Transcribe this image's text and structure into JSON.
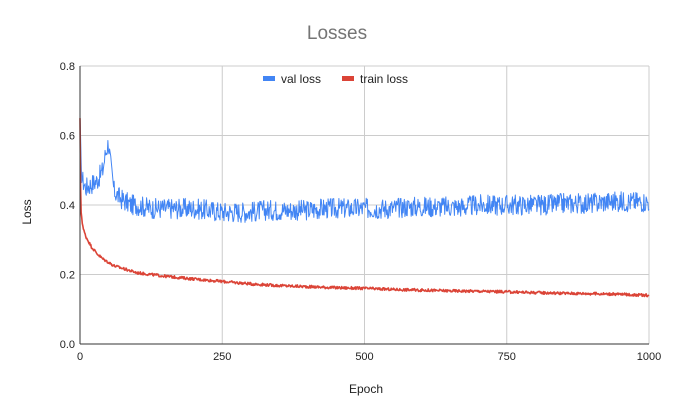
{
  "chart_data": {
    "type": "line",
    "title": "Losses",
    "xlabel": "Epoch",
    "ylabel": "Loss",
    "xlim": [
      0,
      1000
    ],
    "ylim": [
      0,
      0.8
    ],
    "xticks": [
      0,
      250,
      500,
      750,
      1000
    ],
    "yticks": [
      0.0,
      0.2,
      0.4,
      0.6,
      0.8
    ],
    "xtick_labels": [
      "0",
      "250",
      "500",
      "750",
      "1000"
    ],
    "ytick_labels": [
      "0.0",
      "0.2",
      "0.4",
      "0.6",
      "0.8"
    ],
    "grid": true,
    "legend_position": "top-center",
    "series": [
      {
        "name": "val loss",
        "color": "#4285F4",
        "x": [
          0,
          2,
          5,
          10,
          20,
          30,
          40,
          45,
          50,
          55,
          60,
          70,
          80,
          90,
          100,
          125,
          150,
          175,
          200,
          225,
          250,
          275,
          300,
          325,
          350,
          375,
          400,
          425,
          450,
          475,
          500,
          525,
          550,
          575,
          600,
          625,
          650,
          675,
          700,
          725,
          750,
          775,
          800,
          825,
          850,
          875,
          900,
          925,
          950,
          975,
          1000
        ],
        "y": [
          0.65,
          0.5,
          0.47,
          0.45,
          0.46,
          0.47,
          0.5,
          0.55,
          0.58,
          0.5,
          0.44,
          0.42,
          0.41,
          0.4,
          0.4,
          0.39,
          0.39,
          0.39,
          0.39,
          0.385,
          0.38,
          0.38,
          0.38,
          0.385,
          0.385,
          0.385,
          0.385,
          0.39,
          0.39,
          0.39,
          0.39,
          0.39,
          0.39,
          0.395,
          0.395,
          0.395,
          0.395,
          0.395,
          0.4,
          0.4,
          0.4,
          0.4,
          0.4,
          0.4,
          0.405,
          0.405,
          0.405,
          0.41,
          0.41,
          0.41,
          0.41
        ],
        "noise": 0.03
      },
      {
        "name": "train loss",
        "color": "#DB4437",
        "x": [
          0,
          1,
          2,
          4,
          6,
          10,
          15,
          20,
          30,
          40,
          50,
          60,
          70,
          80,
          100,
          125,
          150,
          200,
          250,
          300,
          350,
          400,
          450,
          500,
          550,
          600,
          650,
          700,
          750,
          800,
          850,
          900,
          950,
          1000
        ],
        "y": [
          0.65,
          0.45,
          0.38,
          0.35,
          0.33,
          0.31,
          0.295,
          0.28,
          0.26,
          0.245,
          0.235,
          0.225,
          0.22,
          0.215,
          0.205,
          0.2,
          0.195,
          0.187,
          0.18,
          0.173,
          0.168,
          0.165,
          0.162,
          0.16,
          0.157,
          0.155,
          0.153,
          0.152,
          0.15,
          0.148,
          0.146,
          0.145,
          0.143,
          0.14
        ],
        "noise": 0.004
      }
    ]
  }
}
